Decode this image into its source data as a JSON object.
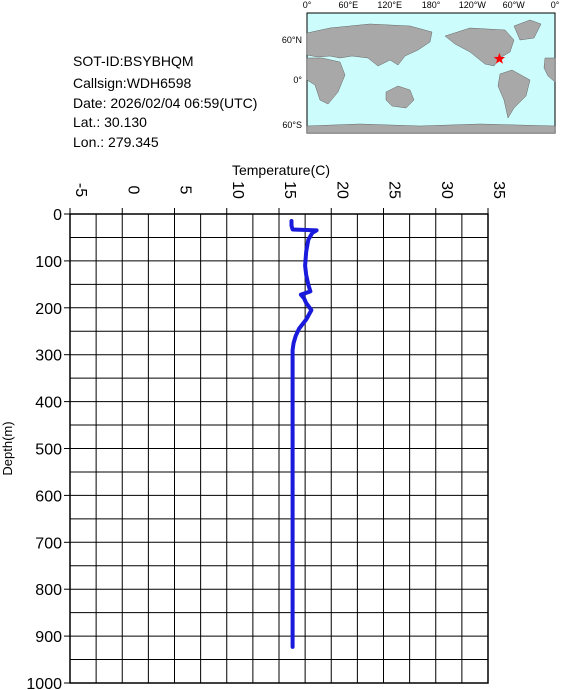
{
  "info": {
    "sot_id": "SOT-ID:BSYBHQM",
    "callsign": "Callsign:WDH6598",
    "date": "Date:  2026/02/04 06:59(UTC)",
    "lat": "Lat.:   30.130",
    "lon": "Lon.:  279.345"
  },
  "map": {
    "lon_labels": [
      "0°",
      "60°E",
      "120°E",
      "180°",
      "120°W",
      "60°W",
      "0°"
    ],
    "lat_labels": [
      "60°N",
      "0°",
      "60°S"
    ],
    "station_lon": 279.345,
    "station_lat": 30.13,
    "lonlim": [
      0,
      360
    ],
    "station_color": "#ff0000"
  },
  "chart_data": {
    "type": "line",
    "xlabel": "Temperature(C)",
    "ylabel": "Depth(m)",
    "xlim": [
      -5,
      35
    ],
    "xticks": [
      -5,
      0,
      5,
      10,
      15,
      20,
      25,
      30,
      35
    ],
    "xminor": [
      -2.5,
      2.5,
      7.5,
      12.5,
      17.5,
      22.5,
      27.5,
      32.5
    ],
    "ylim": [
      0,
      1000
    ],
    "yticks": [
      0,
      100,
      200,
      300,
      400,
      500,
      600,
      700,
      800,
      900,
      1000
    ],
    "yminor": [
      50,
      150,
      250,
      350,
      450,
      550,
      650,
      750,
      850,
      950
    ],
    "grid": true,
    "y_inverted": true,
    "x_axis_top": true,
    "series": [
      {
        "color": "#1a1adc",
        "temperature": [
          16.2,
          16.2,
          16.3,
          18.6,
          18.2,
          17.8,
          17.6,
          17.5,
          17.6,
          17.8,
          18.0,
          17.1,
          17.4,
          17.6,
          18.1,
          17.6,
          16.9,
          16.6,
          16.4,
          16.3,
          16.3,
          16.3,
          16.3,
          16.3,
          16.3
        ],
        "depth": [
          15,
          25,
          33,
          35,
          40,
          55,
          80,
          110,
          130,
          150,
          165,
          172,
          180,
          190,
          205,
          225,
          245,
          260,
          275,
          290,
          310,
          500,
          700,
          850,
          923
        ]
      }
    ]
  }
}
